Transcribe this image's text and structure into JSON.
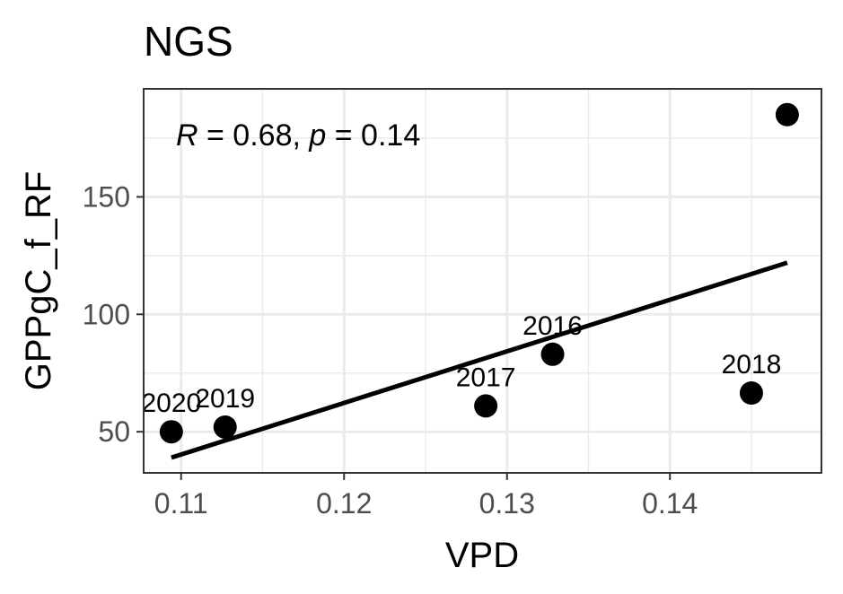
{
  "chart_data": {
    "type": "scatter",
    "title": "NGS",
    "xlabel": "VPD",
    "ylabel": "GPPgC_f_RF",
    "xlim": [
      0.1077,
      0.1493
    ],
    "ylim": [
      32.5,
      196
    ],
    "x_ticks": [
      0.11,
      0.12,
      0.13,
      0.14
    ],
    "x_tick_labels": [
      "0.11",
      "0.12",
      "0.13",
      "0.14"
    ],
    "y_ticks": [
      50,
      100,
      150
    ],
    "y_tick_labels": [
      "50",
      "100",
      "150"
    ],
    "grid": true,
    "points": [
      {
        "x": 0.1094,
        "y": 50,
        "label": "2020"
      },
      {
        "x": 0.1127,
        "y": 52,
        "label": "2019"
      },
      {
        "x": 0.1287,
        "y": 61,
        "label": "2017"
      },
      {
        "x": 0.1328,
        "y": 83,
        "label": "2016"
      },
      {
        "x": 0.145,
        "y": 66.5,
        "label": "2018"
      },
      {
        "x": 0.1472,
        "y": 185,
        "label": ""
      }
    ],
    "fit_line": {
      "x": [
        0.1094,
        0.1472
      ],
      "y": [
        39,
        122
      ]
    },
    "annotation": {
      "r_symbol": "R",
      "r_text": " = 0.68, ",
      "p_symbol": "p",
      "p_text": " = 0.14"
    }
  }
}
